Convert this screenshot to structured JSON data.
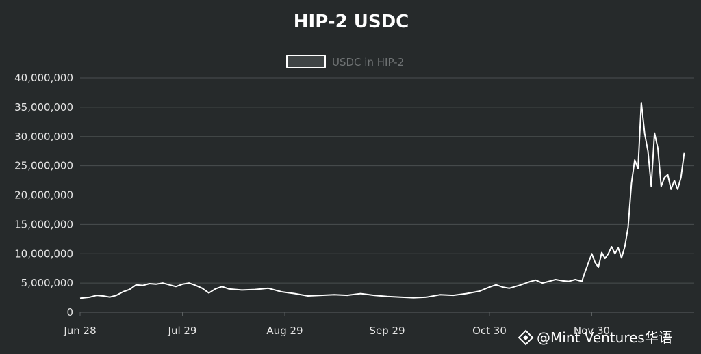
{
  "chart_data": {
    "type": "line",
    "title": "HIP-2 USDC",
    "xlabel": "",
    "ylabel": "",
    "legend": {
      "position": "top-center",
      "entries": [
        "USDC in HIP-2"
      ]
    },
    "grid": true,
    "ylim": [
      0,
      40000000
    ],
    "yticks": [
      0,
      5000000,
      10000000,
      15000000,
      20000000,
      25000000,
      30000000,
      35000000,
      40000000
    ],
    "ytick_labels": [
      "0",
      "5,000,000",
      "10,000,000",
      "15,000,000",
      "20,000,000",
      "25,000,000",
      "30,000,000",
      "35,000,000",
      "40,000,000"
    ],
    "xlim": [
      "2024-06-28",
      "2024-12-31"
    ],
    "xticks": [
      "2024-06-28",
      "2024-07-29",
      "2024-08-29",
      "2024-09-29",
      "2024-10-30",
      "2024-11-30"
    ],
    "xtick_labels": [
      "Jun 28",
      "Jul 29",
      "Aug 29",
      "Sep 29",
      "Oct 30",
      "Nov 30"
    ],
    "series": [
      {
        "name": "USDC in HIP-2",
        "color": "#ffffff",
        "points": [
          [
            "2024-06-28",
            2400000
          ],
          [
            "2024-07-01",
            2600000
          ],
          [
            "2024-07-03",
            2900000
          ],
          [
            "2024-07-05",
            2800000
          ],
          [
            "2024-07-07",
            2600000
          ],
          [
            "2024-07-09",
            2900000
          ],
          [
            "2024-07-11",
            3500000
          ],
          [
            "2024-07-13",
            3900000
          ],
          [
            "2024-07-15",
            4700000
          ],
          [
            "2024-07-17",
            4600000
          ],
          [
            "2024-07-19",
            4900000
          ],
          [
            "2024-07-21",
            4800000
          ],
          [
            "2024-07-23",
            5000000
          ],
          [
            "2024-07-25",
            4700000
          ],
          [
            "2024-07-27",
            4400000
          ],
          [
            "2024-07-29",
            4800000
          ],
          [
            "2024-07-31",
            5000000
          ],
          [
            "2024-08-02",
            4600000
          ],
          [
            "2024-08-04",
            4100000
          ],
          [
            "2024-08-06",
            3300000
          ],
          [
            "2024-08-08",
            4000000
          ],
          [
            "2024-08-10",
            4400000
          ],
          [
            "2024-08-12",
            4000000
          ],
          [
            "2024-08-16",
            3800000
          ],
          [
            "2024-08-20",
            3900000
          ],
          [
            "2024-08-24",
            4100000
          ],
          [
            "2024-08-28",
            3500000
          ],
          [
            "2024-09-01",
            3200000
          ],
          [
            "2024-09-05",
            2800000
          ],
          [
            "2024-09-09",
            2900000
          ],
          [
            "2024-09-13",
            3000000
          ],
          [
            "2024-09-17",
            2900000
          ],
          [
            "2024-09-21",
            3200000
          ],
          [
            "2024-09-25",
            2900000
          ],
          [
            "2024-09-29",
            2700000
          ],
          [
            "2024-10-03",
            2600000
          ],
          [
            "2024-10-07",
            2500000
          ],
          [
            "2024-10-11",
            2600000
          ],
          [
            "2024-10-15",
            3000000
          ],
          [
            "2024-10-19",
            2900000
          ],
          [
            "2024-10-23",
            3200000
          ],
          [
            "2024-10-27",
            3600000
          ],
          [
            "2024-10-30",
            4300000
          ],
          [
            "2024-11-01",
            4700000
          ],
          [
            "2024-11-03",
            4300000
          ],
          [
            "2024-11-05",
            4100000
          ],
          [
            "2024-11-08",
            4600000
          ],
          [
            "2024-11-11",
            5200000
          ],
          [
            "2024-11-13",
            5500000
          ],
          [
            "2024-11-15",
            5000000
          ],
          [
            "2024-11-17",
            5300000
          ],
          [
            "2024-11-19",
            5600000
          ],
          [
            "2024-11-21",
            5400000
          ],
          [
            "2024-11-23",
            5300000
          ],
          [
            "2024-11-25",
            5600000
          ],
          [
            "2024-11-27",
            5300000
          ],
          [
            "2024-11-28",
            7000000
          ],
          [
            "2024-11-29",
            8500000
          ],
          [
            "2024-11-30",
            10000000
          ],
          [
            "2024-12-01",
            8500000
          ],
          [
            "2024-12-02",
            7700000
          ],
          [
            "2024-12-03",
            10200000
          ],
          [
            "2024-12-04",
            9200000
          ],
          [
            "2024-12-05",
            10000000
          ],
          [
            "2024-12-06",
            11200000
          ],
          [
            "2024-12-07",
            10000000
          ],
          [
            "2024-12-08",
            11000000
          ],
          [
            "2024-12-09",
            9300000
          ],
          [
            "2024-12-10",
            11200000
          ],
          [
            "2024-12-11",
            14500000
          ],
          [
            "2024-12-12",
            22000000
          ],
          [
            "2024-12-13",
            26000000
          ],
          [
            "2024-12-14",
            24500000
          ],
          [
            "2024-12-15",
            35800000
          ],
          [
            "2024-12-16",
            30500000
          ],
          [
            "2024-12-17",
            27500000
          ],
          [
            "2024-12-18",
            21500000
          ],
          [
            "2024-12-19",
            30600000
          ],
          [
            "2024-12-20",
            28000000
          ],
          [
            "2024-12-21",
            21500000
          ],
          [
            "2024-12-22",
            23000000
          ],
          [
            "2024-12-23",
            23500000
          ],
          [
            "2024-12-24",
            21000000
          ],
          [
            "2024-12-25",
            22500000
          ],
          [
            "2024-12-26",
            21000000
          ],
          [
            "2024-12-27",
            23000000
          ],
          [
            "2024-12-28",
            27200000
          ]
        ]
      }
    ]
  },
  "watermark": {
    "text": "@Mint Ventures华语",
    "icon": "binance-diamond-icon"
  }
}
